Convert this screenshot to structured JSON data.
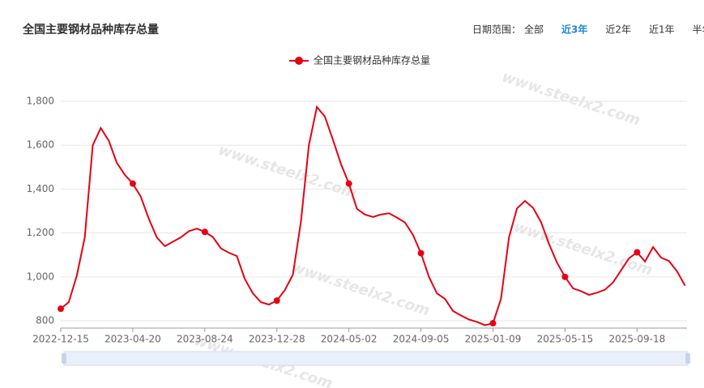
{
  "chart_data": {
    "type": "line",
    "title": "全国主要钢材品种库存总量",
    "range_label": "日期范围：",
    "range_options": [
      "全部",
      "近3年",
      "近2年",
      "近1年",
      "半年"
    ],
    "range_selected": 1,
    "watermark": "www.steelx2.com",
    "categories": [
      "2022-12-15",
      null,
      null,
      null,
      null,
      null,
      null,
      null,
      null,
      "2023-04-20",
      null,
      null,
      null,
      null,
      null,
      null,
      null,
      null,
      "2023-08-24",
      null,
      null,
      null,
      null,
      null,
      null,
      null,
      null,
      "2023-12-28",
      null,
      null,
      null,
      null,
      null,
      null,
      null,
      null,
      "2024-05-02",
      null,
      null,
      null,
      null,
      null,
      null,
      null,
      null,
      "2024-09-05",
      null,
      null,
      null,
      null,
      null,
      null,
      null,
      null,
      "2025-01-09",
      null,
      null,
      null,
      null,
      null,
      null,
      null,
      null,
      "2025-05-15",
      null,
      null,
      null,
      null,
      null,
      null,
      null,
      null,
      "2025-09-18",
      null,
      null,
      null,
      null,
      null,
      null
    ],
    "series": [
      {
        "name": "全国主要钢材品种库存总量",
        "color": "#e60012",
        "values": [
          855,
          885,
          1005,
          1180,
          1600,
          1678,
          1620,
          1520,
          1465,
          1425,
          1365,
          1265,
          1180,
          1140,
          1160,
          1180,
          1208,
          1220,
          1205,
          1182,
          1130,
          1110,
          1095,
          990,
          925,
          885,
          874,
          892,
          940,
          1010,
          1250,
          1600,
          1774,
          1730,
          1625,
          1515,
          1425,
          1310,
          1284,
          1273,
          1284,
          1290,
          1270,
          1248,
          1192,
          1108,
          1000,
          925,
          900,
          845,
          824,
          806,
          795,
          780,
          789,
          900,
          1180,
          1312,
          1346,
          1315,
          1250,
          1150,
          1065,
          1000,
          948,
          935,
          918,
          928,
          942,
          975,
          1030,
          1085,
          1112,
          1070,
          1136,
          1088,
          1072,
          1025,
          960
        ]
      }
    ],
    "ylim": [
      767,
      1800
    ],
    "yticks": [
      800,
      {
        "value": 1000,
        "label": "1,000"
      },
      {
        "value": 1200,
        "label": "1,200"
      },
      {
        "value": 1400,
        "label": "1,400"
      },
      {
        "value": 1600,
        "label": "1,600"
      },
      {
        "value": 1800,
        "label": "1,800"
      }
    ],
    "grid": true
  }
}
